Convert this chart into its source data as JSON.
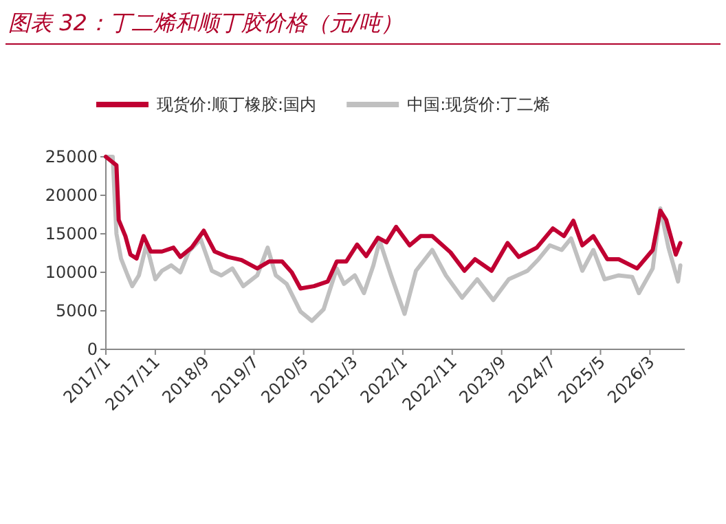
{
  "chart_data": {
    "type": "line",
    "title": "图表 32：丁二烯和顺丁胶价格（元/吨）",
    "legend": "top",
    "grid": false,
    "xlim": [
      "2017-01-01",
      "2026-10-01"
    ],
    "xticks": [
      {
        "value": "2017-01",
        "label": "2017/1"
      },
      {
        "value": "2017-11",
        "label": "2017/11"
      },
      {
        "value": "2018-09",
        "label": "2018/9"
      },
      {
        "value": "2019-07",
        "label": "2019/7"
      },
      {
        "value": "2020-05",
        "label": "2020/5"
      },
      {
        "value": "2021-03",
        "label": "2021/3"
      },
      {
        "value": "2022-01",
        "label": "2022/1"
      },
      {
        "value": "2022-11",
        "label": "2022/11"
      },
      {
        "value": "2023-09",
        "label": "2023/9"
      },
      {
        "value": "2024-07",
        "label": "2024/7"
      },
      {
        "value": "2025-05",
        "label": "2025/5"
      },
      {
        "value": "2026-03",
        "label": "2026/3"
      }
    ],
    "ylim": [
      0,
      25000
    ],
    "yticks": [
      0,
      5000,
      10000,
      15000,
      20000,
      25000
    ],
    "series": [
      {
        "name": "现货价:顺丁橡胶:国内",
        "color": "#c00032",
        "x": [
          "2017-01-01",
          "2017-03-07",
          "2017-03-21",
          "2017-05-01",
          "2017-06-01",
          "2017-07-09",
          "2017-08-21",
          "2017-10-04",
          "2017-12-12",
          "2018-02-21",
          "2018-04-04",
          "2018-06-12",
          "2018-08-26",
          "2018-11-01",
          "2019-01-21",
          "2019-04-15",
          "2019-07-21",
          "2019-10-01",
          "2019-12-21",
          "2020-02-18",
          "2020-04-12",
          "2020-07-04",
          "2020-09-26",
          "2020-11-21",
          "2021-01-18",
          "2021-03-26",
          "2021-05-21",
          "2021-08-01",
          "2021-09-23",
          "2021-11-21",
          "2022-02-12",
          "2022-04-21",
          "2022-07-01",
          "2022-10-21",
          "2023-01-15",
          "2023-03-21",
          "2023-07-01",
          "2023-10-07",
          "2023-12-15",
          "2024-04-04",
          "2024-07-12",
          "2024-09-18",
          "2024-11-15",
          "2025-01-09",
          "2025-03-18",
          "2025-06-12",
          "2025-08-21",
          "2025-12-12",
          "2026-03-18",
          "2026-05-04",
          "2026-06-09",
          "2026-08-07",
          "2026-09-04"
        ],
        "values": [
          25000,
          23900,
          16800,
          14700,
          12300,
          11800,
          14700,
          12700,
          12700,
          13200,
          12000,
          13200,
          15400,
          12700,
          12000,
          11600,
          10500,
          11400,
          11400,
          10000,
          7900,
          8200,
          8800,
          11400,
          11400,
          13600,
          12100,
          14500,
          13900,
          15900,
          13500,
          14700,
          14700,
          12600,
          10200,
          11700,
          10200,
          13800,
          12000,
          13200,
          15700,
          14700,
          16700,
          13500,
          14700,
          11700,
          11700,
          10500,
          12900,
          18000,
          16800,
          12300,
          13800
        ]
      },
      {
        "name": "中国:现货价:丁二烯",
        "color": "#c0c0c0",
        "x": [
          "2017-01-01",
          "2017-02-12",
          "2017-03-07",
          "2017-04-04",
          "2017-05-15",
          "2017-06-12",
          "2017-07-23",
          "2017-09-07",
          "2017-11-01",
          "2017-12-12",
          "2018-02-07",
          "2018-04-04",
          "2018-05-26",
          "2018-08-07",
          "2018-10-15",
          "2018-12-12",
          "2019-02-18",
          "2019-04-26",
          "2019-07-21",
          "2019-09-23",
          "2019-11-12",
          "2020-01-18",
          "2020-04-12",
          "2020-06-21",
          "2020-09-01",
          "2020-11-21",
          "2021-01-04",
          "2021-03-12",
          "2021-05-07",
          "2021-07-04",
          "2021-08-12",
          "2021-10-21",
          "2022-01-12",
          "2022-03-23",
          "2022-07-01",
          "2022-09-23",
          "2023-01-01",
          "2023-04-04",
          "2023-07-12",
          "2023-10-15",
          "2024-02-07",
          "2024-04-15",
          "2024-06-23",
          "2024-09-04",
          "2024-11-01",
          "2025-01-09",
          "2025-03-18",
          "2025-05-26",
          "2025-08-21",
          "2025-11-12",
          "2025-12-23",
          "2026-03-18",
          "2026-05-04",
          "2026-06-23",
          "2026-08-21",
          "2026-09-04"
        ],
        "values": [
          25000,
          25000,
          15000,
          11800,
          9600,
          8200,
          9600,
          13600,
          9100,
          10200,
          10900,
          10000,
          12700,
          14300,
          10200,
          9600,
          10500,
          8200,
          9600,
          13200,
          9600,
          8500,
          4900,
          3700,
          5200,
          10500,
          8500,
          9600,
          7300,
          10900,
          14100,
          9600,
          4600,
          10200,
          12900,
          9600,
          6700,
          9100,
          6400,
          9100,
          10200,
          11700,
          13500,
          12900,
          14400,
          10200,
          12900,
          9100,
          9600,
          9400,
          7300,
          10500,
          18300,
          13200,
          8800,
          10900
        ]
      }
    ]
  }
}
